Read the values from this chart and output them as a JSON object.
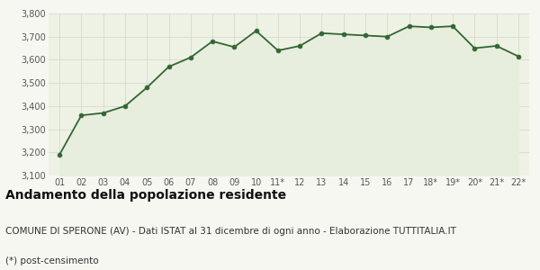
{
  "x_labels": [
    "01",
    "02",
    "03",
    "04",
    "05",
    "06",
    "07",
    "08",
    "09",
    "10",
    "11*",
    "12",
    "13",
    "14",
    "15",
    "16",
    "17",
    "18*",
    "19*",
    "20*",
    "21*",
    "22*"
  ],
  "y_values": [
    3190,
    3360,
    3370,
    3400,
    3480,
    3570,
    3610,
    3680,
    3655,
    3725,
    3640,
    3660,
    3715,
    3710,
    3705,
    3700,
    3745,
    3740,
    3745,
    3650,
    3660,
    3615
  ],
  "line_color": "#336633",
  "fill_color": "#e8eedd",
  "marker_color": "#336633",
  "plot_bg_color": "#eef2e4",
  "fig_bg_color": "#f7f7f2",
  "grid_color": "#d8d8d0",
  "ylim_min": 3100,
  "ylim_max": 3800,
  "yticks": [
    3100,
    3200,
    3300,
    3400,
    3500,
    3600,
    3700,
    3800
  ],
  "title": "Andamento della popolazione residente",
  "subtitle": "COMUNE DI SPERONE (AV) - Dati ISTAT al 31 dicembre di ogni anno - Elaborazione TUTTITALIA.IT",
  "footnote": "(*) post-censimento",
  "title_fontsize": 10,
  "subtitle_fontsize": 7.5,
  "footnote_fontsize": 7.5,
  "tick_fontsize": 7,
  "marker_size": 3.5,
  "line_width": 1.3
}
